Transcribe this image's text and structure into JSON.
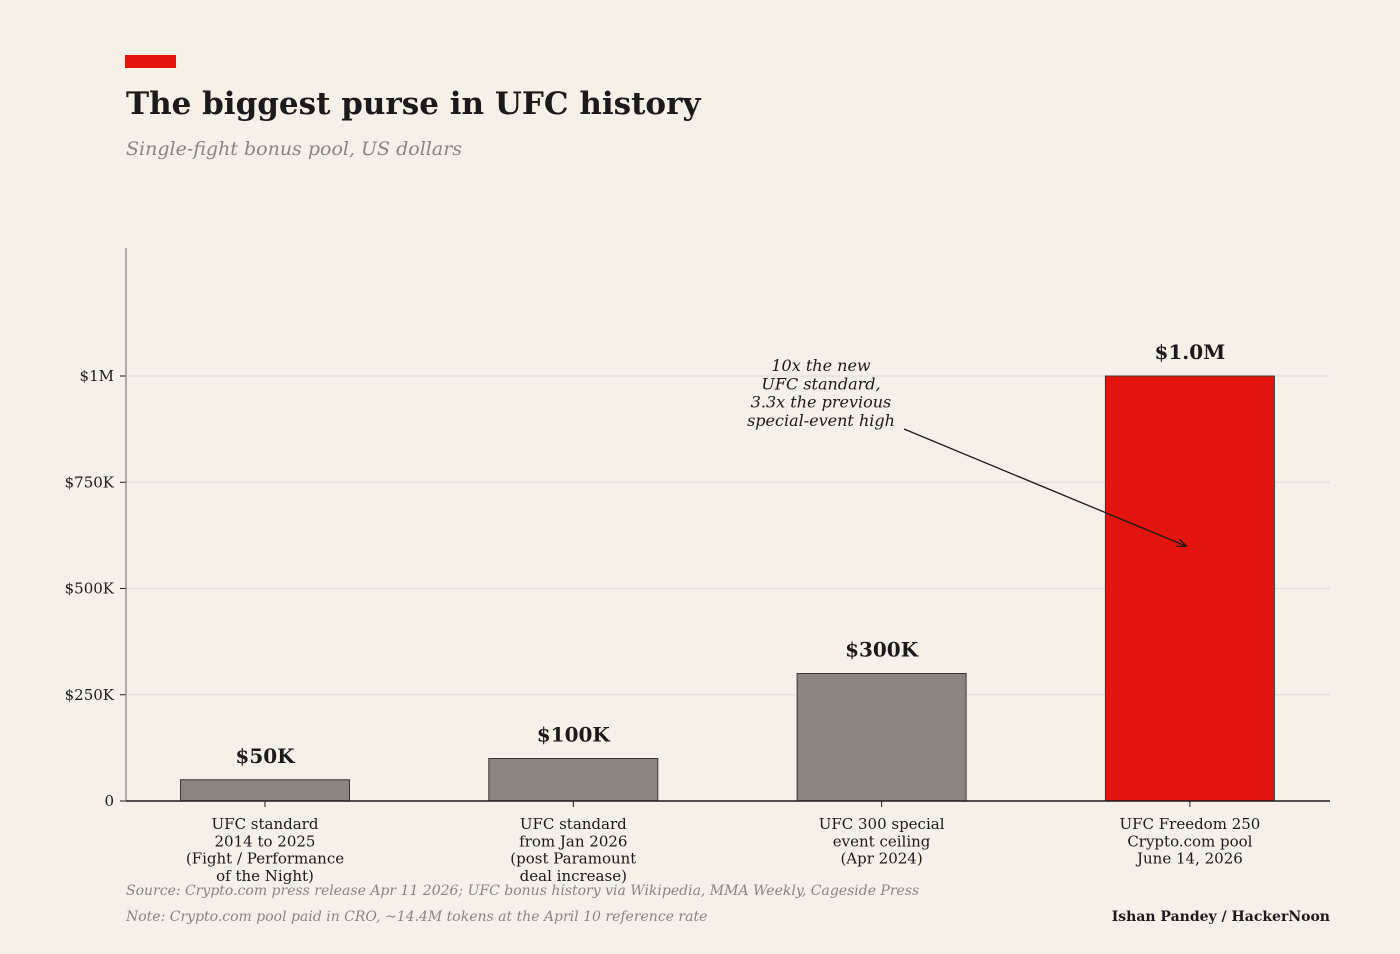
{
  "colors": {
    "accent": "#e3140d",
    "bar_default": "#8b8580",
    "bar_highlight": "#e3140d",
    "background": "#f5f0e8",
    "text": "#1a1a1a",
    "muted": "#8a8580"
  },
  "chart_data": {
    "type": "bar",
    "title": "The biggest purse in UFC history",
    "subtitle": "Single-fight bonus pool, US dollars",
    "xlabel": "",
    "ylabel": "",
    "ylim": [
      0,
      1300000
    ],
    "grid": true,
    "yticks": [
      {
        "value": 0,
        "label": "0"
      },
      {
        "value": 250000,
        "label": "$250K"
      },
      {
        "value": 500000,
        "label": "$500K"
      },
      {
        "value": 750000,
        "label": "$750K"
      },
      {
        "value": 1000000,
        "label": "$1M"
      }
    ],
    "categories": [
      [
        "UFC standard",
        "2014 to 2025",
        "(Fight / Performance",
        "of the Night)"
      ],
      [
        "UFC standard",
        "from Jan 2026",
        "(post Paramount",
        "deal increase)"
      ],
      [
        "UFC 300 special",
        "event ceiling",
        "(Apr 2024)"
      ],
      [
        "UFC Freedom 250",
        "Crypto.com pool",
        "June 14, 2026"
      ]
    ],
    "values": [
      50000,
      100000,
      300000,
      1000000
    ],
    "value_labels": [
      "$50K",
      "$100K",
      "$300K",
      "$1.0M"
    ],
    "highlight_index": 3,
    "annotation": {
      "lines": [
        "10x the new",
        "UFC standard,",
        "3.3x the previous",
        "special-event high"
      ],
      "target_category_index": 3,
      "target_value": 600000
    }
  },
  "footer": {
    "source": "Source: Crypto.com press release Apr 11 2026; UFC bonus history via Wikipedia, MMA Weekly, Cageside Press",
    "note": "Note: Crypto.com pool paid in CRO, ~14.4M tokens at the April 10 reference rate",
    "byline": "Ishan Pandey  /  HackerNoon"
  }
}
